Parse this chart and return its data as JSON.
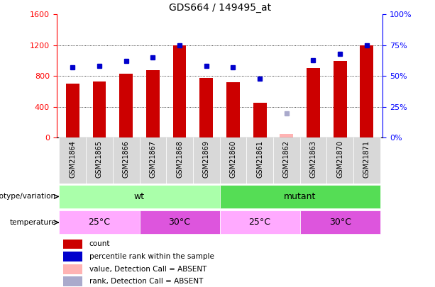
{
  "title": "GDS664 / 149495_at",
  "samples": [
    "GSM21864",
    "GSM21865",
    "GSM21866",
    "GSM21867",
    "GSM21868",
    "GSM21869",
    "GSM21860",
    "GSM21861",
    "GSM21862",
    "GSM21863",
    "GSM21870",
    "GSM21871"
  ],
  "counts": [
    700,
    730,
    830,
    880,
    1200,
    780,
    720,
    450,
    50,
    900,
    1000,
    1200
  ],
  "ranks": [
    57,
    58,
    62,
    65,
    75,
    58,
    57,
    48,
    null,
    63,
    68,
    75
  ],
  "absent_count": [
    null,
    null,
    null,
    null,
    null,
    null,
    null,
    null,
    50,
    null,
    null,
    null
  ],
  "absent_rank": [
    null,
    null,
    null,
    null,
    null,
    null,
    null,
    null,
    20,
    null,
    null,
    null
  ],
  "ylim_left": [
    0,
    1600
  ],
  "ylim_right": [
    0,
    100
  ],
  "yticks_left": [
    0,
    400,
    800,
    1200,
    1600
  ],
  "yticks_right": [
    0,
    25,
    50,
    75,
    100
  ],
  "bar_color": "#cc0000",
  "rank_color": "#0000cc",
  "absent_bar_color": "#ffb3b3",
  "absent_rank_color": "#aaaacc",
  "wt_color": "#aaffaa",
  "mutant_color": "#55dd55",
  "temp25_color": "#ffaaff",
  "temp30_color": "#dd55dd",
  "col_bg": "#d8d8d8",
  "legend_items": [
    {
      "color": "#cc0000",
      "label": "count"
    },
    {
      "color": "#0000cc",
      "label": "percentile rank within the sample"
    },
    {
      "color": "#ffb3b3",
      "label": "value, Detection Call = ABSENT"
    },
    {
      "color": "#aaaacc",
      "label": "rank, Detection Call = ABSENT"
    }
  ]
}
